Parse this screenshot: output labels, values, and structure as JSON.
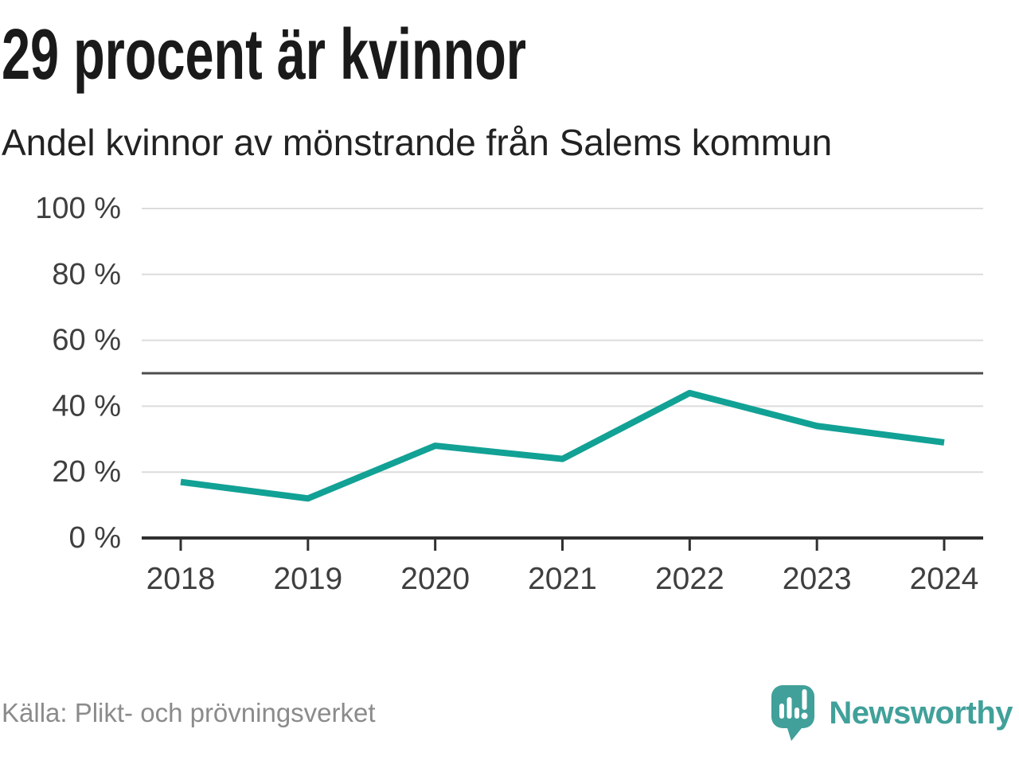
{
  "header": {
    "title": "29 procent är kvinnor",
    "subtitle": "Andel kvinnor av mönstrande från Salems kommun"
  },
  "chart_data": {
    "type": "line",
    "title": "29 procent är kvinnor",
    "subtitle": "Andel kvinnor av mönstrande från Salems kommun",
    "categories": [
      "2018",
      "2019",
      "2020",
      "2021",
      "2022",
      "2023",
      "2024"
    ],
    "series": [
      {
        "name": "Andel kvinnor av mönstrande",
        "values": [
          17,
          12,
          28,
          24,
          44,
          34,
          29
        ]
      }
    ],
    "unit": "%",
    "xlabel": "",
    "ylabel": "",
    "ylim": [
      0,
      100
    ],
    "yticks": [
      0,
      20,
      40,
      60,
      80,
      100
    ],
    "ytick_format": "{v} %",
    "reference_line": 50,
    "grid": true,
    "legend": false,
    "line_width": 8
  },
  "footer": {
    "source": "Källa: Plikt- och prövningsverket",
    "brand": "Newsworthy"
  },
  "colors": {
    "line": "#12a195",
    "grid": "#dcdcdc",
    "reference_line": "#4d4d4d",
    "axis": "#303030",
    "tick_label": "#3f3f3f",
    "title": "#1a1a1a",
    "subtitle": "#222222",
    "source": "#8b8b8b",
    "brand": "#41a09a"
  },
  "icons": {
    "logo": "newsworthy-speech-bubble-bar-chart-icon"
  }
}
